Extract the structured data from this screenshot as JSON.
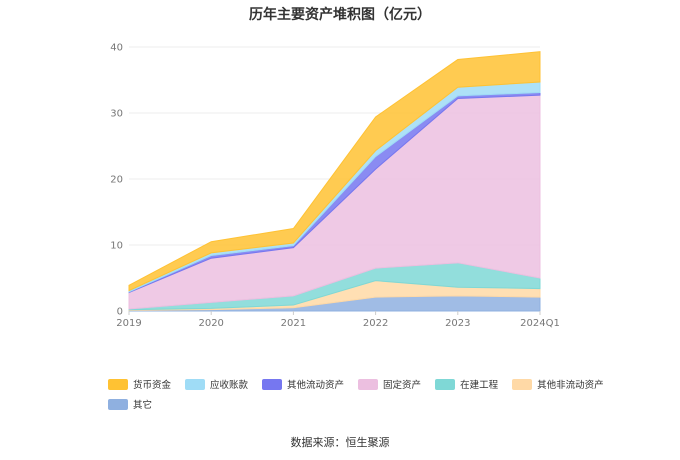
{
  "title": "历年主要资产堆积图（亿元）",
  "source": "数据来源：恒生聚源",
  "colors": {
    "货币资金": "#ffc233",
    "应收账款": "#9fdcf6",
    "其他流动资产": "#7677f0",
    "固定资产": "#ecbfe0",
    "在建工程": "#7fd8d6",
    "其他非流动资产": "#ffd9a6",
    "其它": "#8fb0e0"
  },
  "chart_data": {
    "type": "area",
    "stacked": true,
    "x": [
      "2019",
      "2020",
      "2021",
      "2022",
      "2023",
      "2024Q1"
    ],
    "ylim": [
      0,
      40
    ],
    "yticks": [
      0,
      10,
      20,
      30,
      40
    ],
    "grid": true,
    "legend_position": "bottom",
    "series": [
      {
        "name": "其它",
        "values": [
          0.1,
          0.2,
          0.5,
          2.1,
          2.3,
          2.1
        ]
      },
      {
        "name": "其他非流动资产",
        "values": [
          0.1,
          0.2,
          0.4,
          2.5,
          1.3,
          1.3
        ]
      },
      {
        "name": "在建工程",
        "values": [
          0.1,
          0.9,
          1.4,
          1.9,
          3.7,
          1.6
        ]
      },
      {
        "name": "固定资产",
        "values": [
          2.5,
          6.7,
          7.3,
          15.0,
          24.9,
          27.7
        ]
      },
      {
        "name": "其他流动资产",
        "values": [
          0.1,
          0.4,
          0.3,
          1.9,
          0.4,
          0.4
        ]
      },
      {
        "name": "应收账款",
        "values": [
          0.2,
          0.4,
          0.4,
          0.9,
          1.3,
          1.6
        ]
      },
      {
        "name": "货币资金",
        "values": [
          0.8,
          1.7,
          2.2,
          5.1,
          4.2,
          4.6
        ]
      }
    ]
  },
  "legend_order": [
    "货币资金",
    "应收账款",
    "其他流动资产",
    "固定资产",
    "在建工程",
    "其他非流动资产",
    "其它"
  ]
}
